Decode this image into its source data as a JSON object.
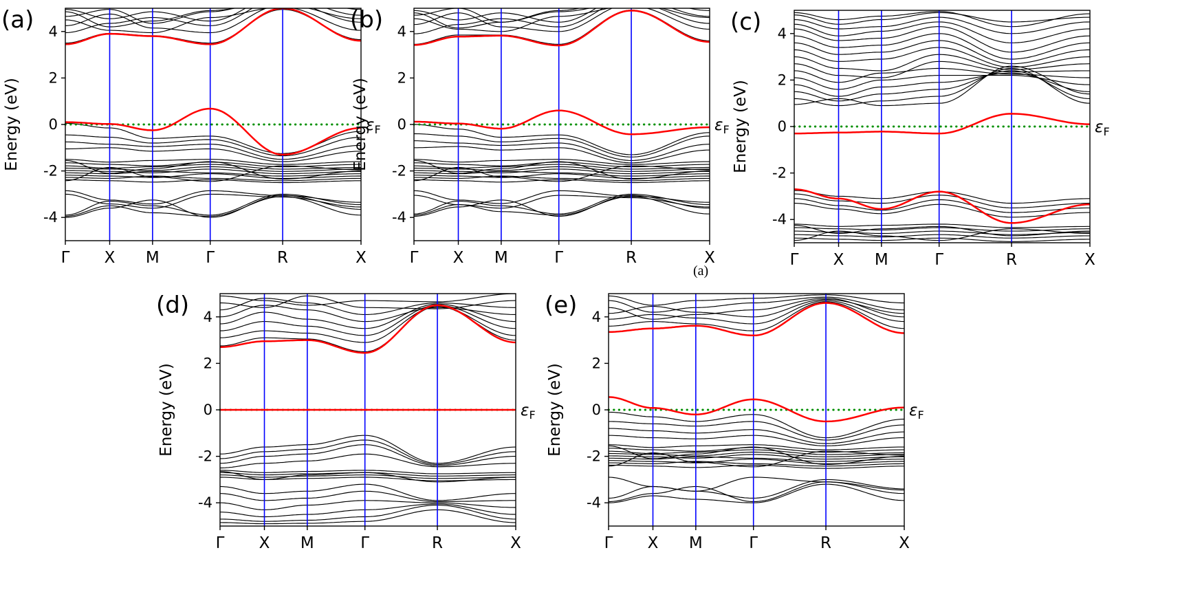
{
  "caption": {
    "text": "(a)"
  },
  "colors": {
    "band": "#000000",
    "highlight": "#ff0000",
    "k_line": "#0000ff",
    "fermi": "#008f00",
    "frame": "#000000"
  },
  "chart_data": [
    {
      "id": "a",
      "type": "line",
      "label": "(a)",
      "ylabel": "Energy (eV)",
      "ylim": [
        -5,
        5
      ],
      "yticks": [
        -4,
        -2,
        0,
        2,
        4
      ],
      "k_labels": [
        "Γ",
        "X",
        "M",
        "Γ",
        "R",
        "X"
      ],
      "k_positions": [
        0,
        0.15,
        0.295,
        0.49,
        0.735,
        1
      ],
      "fermi_energy": 0,
      "fermi_label": "εF",
      "red_bands": [
        [
          0.1,
          0.02,
          -0.25,
          0.68,
          -1.3,
          -0.15
        ],
        [
          3.45,
          3.9,
          3.8,
          3.45,
          5.0,
          3.6
        ]
      ],
      "black_bands": [
        [
          4.85,
          4.2,
          4.45,
          4.9,
          5.3,
          4.4
        ],
        [
          4.5,
          4.05,
          3.95,
          4.6,
          5.05,
          4.05
        ],
        [
          3.95,
          4.35,
          4.6,
          4.25,
          5.45,
          4.7
        ],
        [
          4.25,
          4.75,
          4.15,
          3.95,
          5.15,
          4.55
        ],
        [
          3.5,
          3.92,
          3.82,
          3.5,
          4.95,
          3.65
        ],
        [
          4.95,
          4.55,
          4.85,
          4.45,
          5.6,
          4.95
        ],
        [
          4.65,
          4.95,
          4.35,
          4.85,
          5.5,
          5.1
        ],
        [
          0.05,
          -0.15,
          -0.6,
          -0.5,
          -1.25,
          -0.3
        ],
        [
          -0.45,
          -0.55,
          -0.8,
          -0.65,
          -1.35,
          -0.55
        ],
        [
          -0.75,
          -0.85,
          -0.95,
          -0.85,
          -1.5,
          -0.9
        ],
        [
          -1.05,
          -1.0,
          -1.15,
          -1.05,
          -1.6,
          -1.15
        ],
        [
          -1.5,
          -1.62,
          -1.55,
          -1.5,
          -1.72,
          -1.6
        ],
        [
          -1.65,
          -1.72,
          -1.78,
          -1.62,
          -1.82,
          -1.72
        ],
        [
          -1.78,
          -1.88,
          -1.82,
          -1.72,
          -1.92,
          -1.85
        ],
        [
          -1.88,
          -1.92,
          -1.98,
          -1.82,
          -2.02,
          -1.92
        ],
        [
          -1.98,
          -2.02,
          -2.08,
          -1.92,
          -2.12,
          -2.02
        ],
        [
          -2.08,
          -2.12,
          -2.02,
          -2.08,
          -2.22,
          -2.12
        ],
        [
          -2.18,
          -2.22,
          -2.28,
          -2.12,
          -2.32,
          -2.22
        ],
        [
          -2.28,
          -2.32,
          -2.22,
          -2.32,
          -2.42,
          -2.32
        ],
        [
          -2.38,
          -2.42,
          -2.48,
          -2.38,
          -2.5,
          -2.42
        ],
        [
          -1.55,
          -2.1,
          -1.9,
          -1.6,
          -2.35,
          -2.0
        ],
        [
          -2.42,
          -1.85,
          -2.25,
          -2.45,
          -1.78,
          -1.95
        ],
        [
          -3.9,
          -3.3,
          -3.5,
          -3.9,
          -3.0,
          -3.45
        ],
        [
          -4.0,
          -3.6,
          -3.25,
          -4.0,
          -3.05,
          -3.65
        ],
        [
          -3.95,
          -3.5,
          -3.8,
          -3.95,
          -3.1,
          -3.9
        ],
        [
          -3.0,
          -3.42,
          -3.6,
          -3.0,
          -3.12,
          -3.55
        ],
        [
          -2.85,
          -3.25,
          -3.42,
          -2.85,
          -3.06,
          -3.35
        ]
      ]
    },
    {
      "id": "b",
      "type": "line",
      "label": "(b)",
      "ylabel": "Energy (eV)",
      "ylim": [
        -5,
        5
      ],
      "yticks": [
        -4,
        -2,
        0,
        2,
        4
      ],
      "k_labels": [
        "Γ",
        "X",
        "M",
        "Γ",
        "R",
        "X"
      ],
      "k_positions": [
        0,
        0.15,
        0.295,
        0.49,
        0.735,
        1
      ],
      "fermi_energy": 0,
      "fermi_label": "εF",
      "red_bands": [
        [
          0.12,
          0.04,
          -0.18,
          0.6,
          -0.42,
          -0.12
        ],
        [
          3.42,
          3.78,
          3.82,
          3.4,
          4.9,
          3.55
        ]
      ],
      "black_bands": [
        [
          4.8,
          4.15,
          4.4,
          4.85,
          5.25,
          4.35
        ],
        [
          4.55,
          4.1,
          4.0,
          4.65,
          5.1,
          4.1
        ],
        [
          3.9,
          4.3,
          4.55,
          4.2,
          5.4,
          4.65
        ],
        [
          4.3,
          4.8,
          4.2,
          4.0,
          5.2,
          4.6
        ],
        [
          3.45,
          3.85,
          3.85,
          3.45,
          4.92,
          3.6
        ],
        [
          4.9,
          4.5,
          4.8,
          4.4,
          5.55,
          4.9
        ],
        [
          4.7,
          5.0,
          4.4,
          4.9,
          5.45,
          5.05
        ],
        [
          0.0,
          -0.2,
          -0.55,
          -0.45,
          -1.3,
          -0.35
        ],
        [
          -0.4,
          -0.5,
          -0.75,
          -0.6,
          -1.4,
          -0.5
        ],
        [
          -0.7,
          -0.8,
          -0.9,
          -0.8,
          -1.55,
          -0.85
        ],
        [
          -1.0,
          -0.95,
          -1.1,
          -1.0,
          -1.65,
          -1.1
        ],
        [
          -1.5,
          -1.62,
          -1.55,
          -1.5,
          -1.72,
          -1.6
        ],
        [
          -1.65,
          -1.72,
          -1.78,
          -1.62,
          -1.82,
          -1.72
        ],
        [
          -1.78,
          -1.88,
          -1.82,
          -1.72,
          -1.92,
          -1.85
        ],
        [
          -1.88,
          -1.92,
          -1.98,
          -1.82,
          -2.02,
          -1.92
        ],
        [
          -1.98,
          -2.02,
          -2.08,
          -1.92,
          -2.12,
          -2.02
        ],
        [
          -2.08,
          -2.12,
          -2.02,
          -2.08,
          -2.22,
          -2.12
        ],
        [
          -2.18,
          -2.22,
          -2.28,
          -2.12,
          -2.32,
          -2.22
        ],
        [
          -2.28,
          -2.32,
          -2.22,
          -2.32,
          -2.42,
          -2.32
        ],
        [
          -2.38,
          -2.42,
          -2.48,
          -2.38,
          -2.5,
          -2.42
        ],
        [
          -1.55,
          -2.1,
          -1.9,
          -1.6,
          -2.35,
          -2.0
        ],
        [
          -2.42,
          -1.85,
          -2.25,
          -2.45,
          -1.78,
          -1.95
        ],
        [
          -3.85,
          -3.3,
          -3.5,
          -3.85,
          -3.0,
          -3.45
        ],
        [
          -3.95,
          -3.55,
          -3.25,
          -3.95,
          -3.05,
          -3.6
        ],
        [
          -3.9,
          -3.45,
          -3.75,
          -3.9,
          -3.1,
          -3.85
        ],
        [
          -3.05,
          -3.45,
          -3.6,
          -3.05,
          -3.15,
          -3.55
        ],
        [
          -2.85,
          -3.25,
          -3.4,
          -2.85,
          -3.08,
          -3.35
        ]
      ]
    },
    {
      "id": "c",
      "type": "line",
      "label": "(c)",
      "ylabel": "Energy (eV)",
      "ylim": [
        -5,
        5
      ],
      "yticks": [
        -4,
        -2,
        0,
        2,
        4
      ],
      "k_labels": [
        "Γ",
        "X",
        "M",
        "Γ",
        "R",
        "X"
      ],
      "k_positions": [
        0,
        0.15,
        0.295,
        0.49,
        0.735,
        1
      ],
      "fermi_energy": 0,
      "fermi_label": "εF",
      "red_bands": [
        [
          -0.3,
          -0.26,
          -0.22,
          -0.3,
          0.55,
          0.1
        ],
        [
          -2.7,
          -3.1,
          -3.55,
          -2.8,
          -4.15,
          -3.35
        ]
      ],
      "black_bands": [
        [
          4.8,
          4.4,
          4.6,
          4.9,
          4.5,
          4.7
        ],
        [
          4.9,
          4.6,
          4.75,
          4.95,
          4.3,
          4.85
        ],
        [
          4.6,
          4.2,
          4.3,
          4.7,
          4.0,
          4.5
        ],
        [
          4.4,
          3.9,
          4.1,
          4.5,
          3.6,
          4.2
        ],
        [
          4.2,
          3.7,
          3.8,
          4.3,
          3.2,
          3.9
        ],
        [
          3.9,
          3.4,
          3.5,
          4.0,
          2.9,
          3.6
        ],
        [
          3.6,
          3.1,
          3.2,
          3.7,
          2.7,
          3.3
        ],
        [
          3.3,
          2.8,
          2.9,
          3.4,
          2.55,
          3.0
        ],
        [
          3.0,
          2.5,
          2.4,
          3.1,
          2.45,
          2.7
        ],
        [
          2.7,
          2.2,
          2.1,
          2.8,
          2.35,
          2.4
        ],
        [
          2.4,
          1.9,
          2.3,
          2.5,
          2.25,
          2.1
        ],
        [
          2.1,
          1.6,
          2.0,
          2.2,
          2.2,
          1.8
        ],
        [
          1.8,
          1.3,
          1.7,
          1.9,
          2.3,
          1.5
        ],
        [
          1.5,
          1.1,
          1.4,
          1.6,
          2.4,
          1.2
        ],
        [
          1.2,
          0.9,
          1.1,
          1.3,
          2.5,
          1.0
        ],
        [
          0.95,
          1.2,
          0.9,
          1.0,
          2.6,
          1.4
        ],
        [
          -2.9,
          -3.2,
          -3.3,
          -2.95,
          -3.5,
          -3.3
        ],
        [
          -3.1,
          -3.4,
          -3.6,
          -3.15,
          -3.7,
          -3.5
        ],
        [
          -3.3,
          -3.55,
          -3.75,
          -3.35,
          -3.9,
          -3.7
        ],
        [
          -2.75,
          -3.0,
          -3.1,
          -2.8,
          -3.3,
          -3.1
        ],
        [
          -4.2,
          -4.3,
          -4.25,
          -4.2,
          -4.35,
          -4.3
        ],
        [
          -4.35,
          -4.4,
          -4.45,
          -4.35,
          -4.5,
          -4.4
        ],
        [
          -4.5,
          -4.55,
          -4.6,
          -4.5,
          -4.65,
          -4.55
        ],
        [
          -4.65,
          -4.7,
          -4.75,
          -4.65,
          -4.8,
          -4.7
        ],
        [
          -4.8,
          -4.85,
          -4.9,
          -4.8,
          -4.95,
          -4.85
        ],
        [
          -4.25,
          -4.6,
          -4.4,
          -4.3,
          -4.7,
          -4.5
        ],
        [
          -4.9,
          -4.5,
          -4.7,
          -4.9,
          -4.4,
          -4.6
        ]
      ]
    },
    {
      "id": "d",
      "type": "line",
      "label": "(d)",
      "ylabel": "Energy (eV)",
      "ylim": [
        -5,
        5
      ],
      "yticks": [
        -4,
        -2,
        0,
        2,
        4
      ],
      "k_labels": [
        "Γ",
        "X",
        "M",
        "Γ",
        "R",
        "X"
      ],
      "k_positions": [
        0,
        0.15,
        0.295,
        0.49,
        0.735,
        1
      ],
      "fermi_energy": 0,
      "fermi_label": "εF",
      "red_bands": [
        [
          0,
          0,
          0,
          0,
          0,
          0
        ],
        [
          2.7,
          2.95,
          3.0,
          2.45,
          4.5,
          2.9
        ]
      ],
      "black_bands": [
        [
          3.1,
          3.4,
          3.3,
          2.9,
          4.45,
          3.2
        ],
        [
          3.4,
          3.8,
          3.6,
          3.2,
          4.5,
          3.5
        ],
        [
          3.7,
          4.2,
          3.9,
          3.5,
          4.55,
          3.8
        ],
        [
          4.0,
          4.5,
          4.3,
          3.8,
          4.4,
          4.1
        ],
        [
          4.3,
          4.8,
          4.6,
          4.1,
          4.6,
          4.4
        ],
        [
          4.6,
          4.4,
          4.9,
          4.4,
          4.35,
          4.7
        ],
        [
          4.9,
          4.7,
          4.5,
          4.7,
          4.65,
          5.0
        ],
        [
          2.75,
          3.1,
          3.05,
          2.5,
          4.45,
          3.0
        ],
        [
          -1.9,
          -1.6,
          -1.5,
          -1.1,
          -2.3,
          -1.6
        ],
        [
          -2.1,
          -1.8,
          -1.7,
          -1.3,
          -2.35,
          -1.8
        ],
        [
          -2.3,
          -2.0,
          -1.9,
          -1.5,
          -2.4,
          -2.0
        ],
        [
          -2.5,
          -2.3,
          -2.2,
          -1.9,
          -2.45,
          -2.3
        ],
        [
          -2.6,
          -2.7,
          -2.65,
          -2.6,
          -2.75,
          -2.7
        ],
        [
          -2.7,
          -2.8,
          -2.75,
          -2.7,
          -2.85,
          -2.8
        ],
        [
          -2.8,
          -2.9,
          -2.85,
          -2.8,
          -2.95,
          -2.9
        ],
        [
          -2.9,
          -3.0,
          -2.95,
          -2.9,
          -3.05,
          -3.0
        ],
        [
          -2.65,
          -3.0,
          -2.8,
          -2.7,
          -3.1,
          -2.9
        ],
        [
          -3.3,
          -3.6,
          -3.5,
          -3.2,
          -3.9,
          -3.6
        ],
        [
          -3.6,
          -3.9,
          -3.8,
          -3.5,
          -3.95,
          -3.9
        ],
        [
          -4.0,
          -4.3,
          -4.1,
          -3.9,
          -4.0,
          -4.2
        ],
        [
          -4.4,
          -4.6,
          -4.5,
          -4.3,
          -4.05,
          -4.5
        ],
        [
          -4.7,
          -4.8,
          -4.75,
          -4.6,
          -4.1,
          -4.7
        ],
        [
          -4.85,
          -4.9,
          -4.88,
          -4.8,
          -4.3,
          -4.85
        ]
      ]
    },
    {
      "id": "e",
      "type": "line",
      "label": "(e)",
      "ylabel": "Energy (eV)",
      "ylim": [
        -5,
        5
      ],
      "yticks": [
        -4,
        -2,
        0,
        2,
        4
      ],
      "k_labels": [
        "Γ",
        "X",
        "M",
        "Γ",
        "R",
        "X"
      ],
      "k_positions": [
        0,
        0.15,
        0.295,
        0.49,
        0.735,
        1
      ],
      "fermi_energy": 0,
      "fermi_label": "εF",
      "red_bands": [
        [
          0.55,
          0.08,
          -0.2,
          0.45,
          -0.5,
          0.1
        ],
        [
          3.35,
          3.5,
          3.62,
          3.2,
          4.6,
          3.3
        ]
      ],
      "black_bands": [
        [
          4.4,
          3.9,
          4.1,
          4.3,
          4.8,
          4.0
        ],
        [
          4.7,
          4.2,
          4.4,
          4.6,
          4.85,
          4.3
        ],
        [
          4.9,
          4.5,
          4.7,
          4.8,
          4.95,
          4.6
        ],
        [
          3.6,
          3.8,
          3.7,
          3.4,
          4.65,
          3.5
        ],
        [
          3.9,
          4.1,
          3.95,
          3.7,
          4.7,
          3.8
        ],
        [
          4.15,
          4.45,
          4.2,
          4.0,
          4.75,
          4.15
        ],
        [
          -0.1,
          -0.3,
          -0.5,
          -0.2,
          -1.2,
          -0.4
        ],
        [
          -0.5,
          -0.6,
          -0.7,
          -0.5,
          -1.3,
          -0.65
        ],
        [
          -0.8,
          -0.9,
          -1.0,
          -0.85,
          -1.45,
          -0.95
        ],
        [
          -1.1,
          -1.2,
          -1.25,
          -1.1,
          -1.55,
          -1.2
        ],
        [
          -1.5,
          -1.62,
          -1.55,
          -1.5,
          -1.72,
          -1.6
        ],
        [
          -1.65,
          -1.72,
          -1.78,
          -1.62,
          -1.82,
          -1.72
        ],
        [
          -1.78,
          -1.88,
          -1.82,
          -1.72,
          -1.92,
          -1.85
        ],
        [
          -1.88,
          -1.92,
          -1.98,
          -1.82,
          -2.02,
          -1.92
        ],
        [
          -1.98,
          -2.02,
          -2.08,
          -1.92,
          -2.12,
          -2.02
        ],
        [
          -2.08,
          -2.12,
          -2.02,
          -2.08,
          -2.22,
          -2.12
        ],
        [
          -2.18,
          -2.22,
          -2.28,
          -2.12,
          -2.32,
          -2.22
        ],
        [
          -2.28,
          -2.32,
          -2.22,
          -2.32,
          -2.42,
          -2.32
        ],
        [
          -2.38,
          -2.42,
          -2.48,
          -2.38,
          -2.52,
          -2.42
        ],
        [
          -1.55,
          -2.1,
          -1.9,
          -1.6,
          -2.35,
          -2.0
        ],
        [
          -2.42,
          -1.85,
          -2.25,
          -2.45,
          -1.78,
          -1.95
        ],
        [
          -3.8,
          -3.3,
          -3.5,
          -3.8,
          -3.0,
          -3.4
        ],
        [
          -3.95,
          -3.6,
          -3.3,
          -3.95,
          -3.1,
          -3.6
        ],
        [
          -2.9,
          -3.3,
          -3.5,
          -2.9,
          -3.1,
          -3.45
        ],
        [
          -4.0,
          -3.7,
          -3.85,
          -4.0,
          -3.2,
          -3.9
        ]
      ]
    }
  ]
}
